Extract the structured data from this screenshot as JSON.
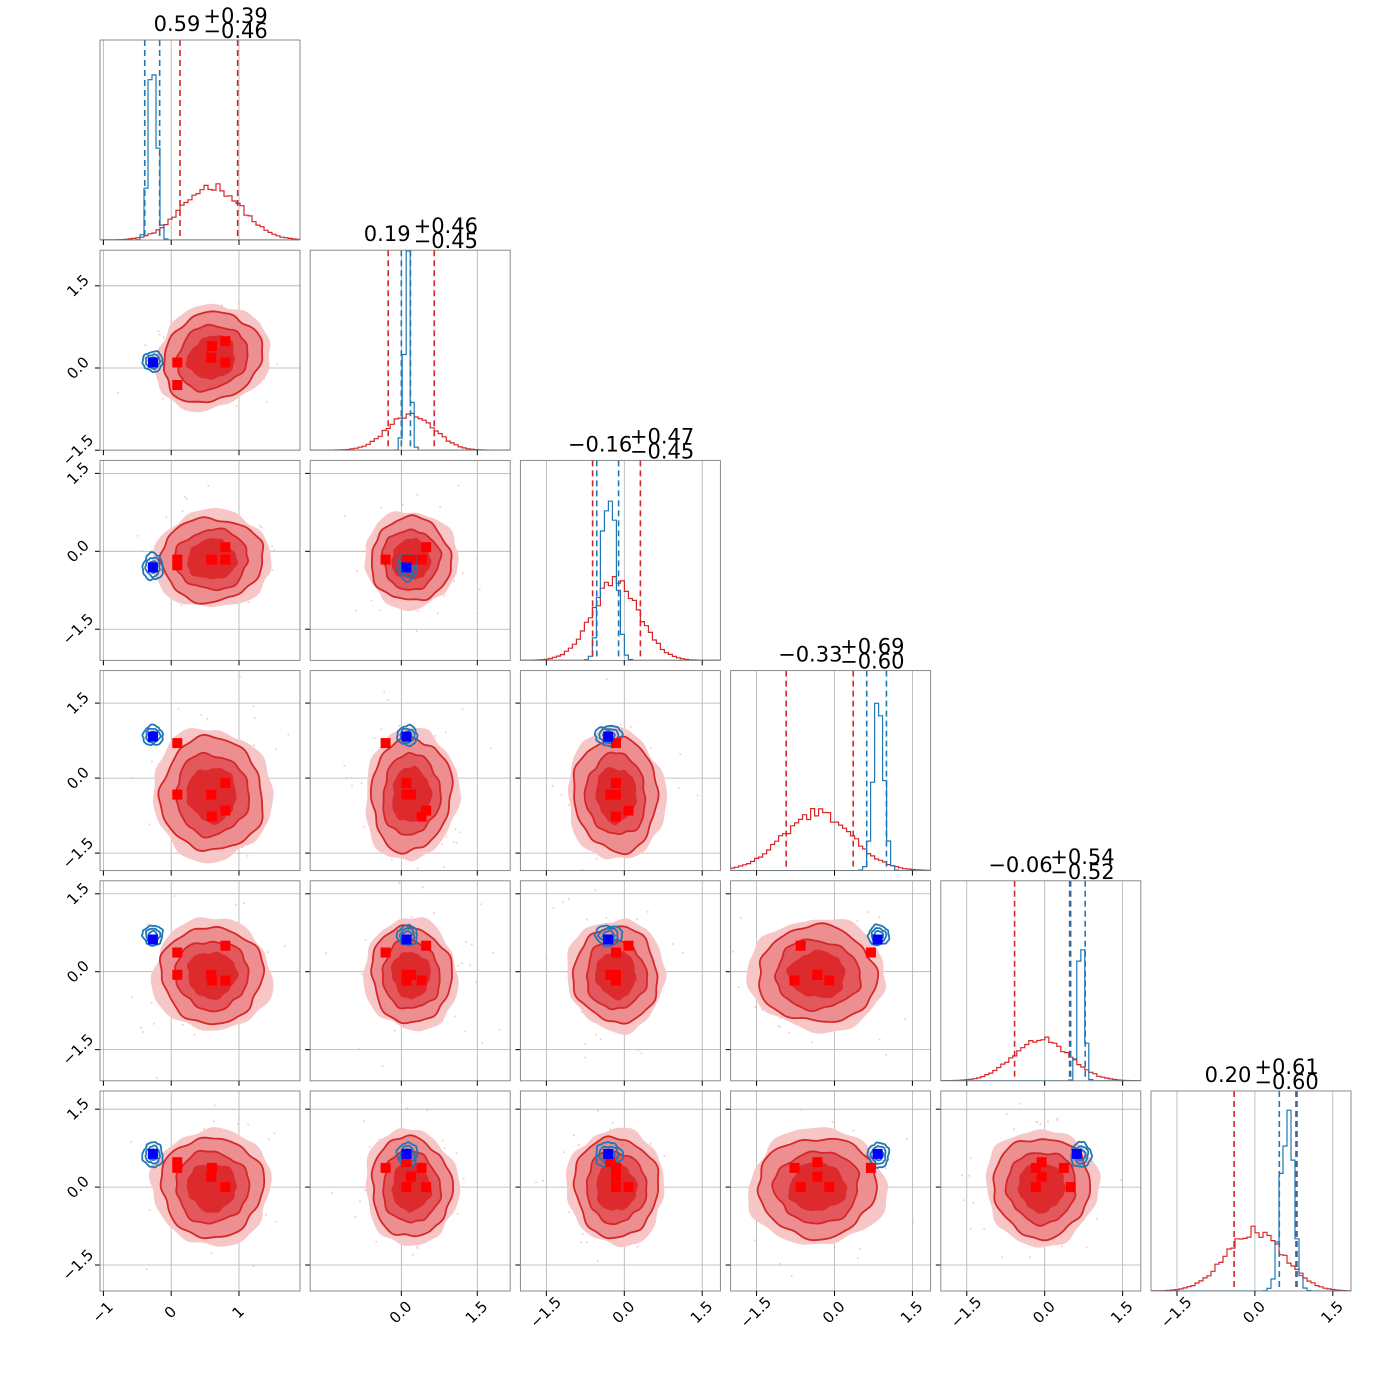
{
  "chart_data": {
    "type": "corner",
    "n_params": 6,
    "grid": true,
    "colors": {
      "red": "#d62728",
      "blue": "#1f77b4",
      "red_marker": "#ff0000",
      "blue_marker": "#0000ff"
    },
    "titles": [
      {
        "median": "0.59",
        "plus": "+0.39",
        "minus": "−0.46"
      },
      {
        "median": "0.19",
        "plus": "+0.46",
        "minus": "−0.45"
      },
      {
        "median": "−0.16",
        "plus": "+0.47",
        "minus": "−0.45"
      },
      {
        "median": "−0.33",
        "plus": "+0.69",
        "minus": "−0.60"
      },
      {
        "median": "−0.06",
        "plus": "+0.54",
        "minus": "−0.52"
      },
      {
        "median": "0.20",
        "plus": "+0.61",
        "minus": "−0.60"
      }
    ],
    "x_ranges": [
      [
        -1.05,
        1.9
      ],
      [
        -1.8,
        2.15
      ],
      [
        -2.0,
        1.85
      ],
      [
        -2.0,
        1.85
      ],
      [
        -2.0,
        1.85
      ],
      [
        -2.0,
        1.85
      ]
    ],
    "y_ranges": [
      null,
      [
        -1.5,
        2.15
      ],
      [
        -2.1,
        1.75
      ],
      [
        -1.85,
        2.15
      ],
      [
        -2.1,
        1.75
      ],
      [
        -2.0,
        1.85
      ]
    ],
    "x_ticks": [
      {
        "values": [
          -1,
          0,
          1
        ],
        "labels": [
          "−1",
          "0",
          "1"
        ]
      },
      {
        "values": [
          0,
          1.5
        ],
        "labels": [
          "0.0",
          "1.5"
        ]
      },
      {
        "values": [
          -1.5,
          0,
          1.5
        ],
        "labels": [
          "−1.5",
          "0.0",
          "1.5"
        ]
      },
      {
        "values": [
          -1.5,
          0,
          1.5
        ],
        "labels": [
          "−1.5",
          "0.0",
          "1.5"
        ]
      },
      {
        "values": [
          -1.5,
          0,
          1.5
        ],
        "labels": [
          "−1.5",
          "0.0",
          "1.5"
        ]
      },
      {
        "values": [
          -1.5,
          0,
          1.5
        ],
        "labels": [
          "−1.5",
          "0.0",
          "1.5"
        ]
      }
    ],
    "y_ticks": {
      "values": [
        -1.5,
        0,
        1.5
      ],
      "labels": [
        "−1.5",
        "0.0",
        "1.5"
      ]
    },
    "diagonal": [
      {
        "red": {
          "mean": 0.6,
          "sd": 0.43,
          "peak": 0.27
        },
        "blue": {
          "mean": -0.27,
          "sd": 0.06,
          "peak": 0.96
        },
        "red_lines": [
          0.13,
          0.98
        ],
        "blue_lines": [
          -0.39,
          -0.17
        ]
      },
      {
        "red": {
          "mean": 0.19,
          "sd": 0.45,
          "peak": 0.18
        },
        "blue": {
          "mean": 0.12,
          "sd": 0.06,
          "peak": 0.9
        },
        "red_lines": [
          -0.26,
          0.65
        ],
        "blue_lines": [
          0.0,
          0.18
        ]
      },
      {
        "red": {
          "mean": -0.16,
          "sd": 0.46,
          "peak": 0.39
        },
        "blue": {
          "mean": -0.3,
          "sd": 0.13,
          "peak": 0.93
        },
        "red_lines": [
          -0.61,
          0.31
        ],
        "blue_lines": [
          -0.53,
          -0.11
        ]
      },
      {
        "red": {
          "mean": -0.33,
          "sd": 0.65,
          "peak": 0.29
        },
        "blue": {
          "mean": 0.85,
          "sd": 0.1,
          "peak": 0.9
        },
        "red_lines": [
          -0.93,
          0.36
        ],
        "blue_lines": [
          0.62,
          1.0
        ]
      },
      {
        "red": {
          "mean": -0.06,
          "sd": 0.53,
          "peak": 0.21
        },
        "blue": {
          "mean": 0.7,
          "sd": 0.06,
          "peak": 0.9
        },
        "red_lines": [
          -0.58,
          0.48
        ],
        "blue_lines": [
          0.5,
          0.78
        ]
      },
      {
        "red": {
          "mean": 0.0,
          "sd": 0.55,
          "peak": 0.3
        },
        "blue": {
          "mean": 0.62,
          "sd": 0.12,
          "peak": 0.9
        },
        "red_lines": [
          -0.4,
          0.81
        ],
        "blue_lines": [
          0.47,
          0.79
        ]
      }
    ],
    "red_points": [
      [
        0.59,
        0.19,
        -0.16,
        -0.33,
        -0.06,
        0.2
      ],
      [
        0.09,
        -0.31,
        -0.16,
        0.7,
        0.37,
        0.37
      ],
      [
        0.8,
        0.49,
        0.08,
        -0.65,
        0.5,
        0.0
      ],
      [
        0.6,
        0.4,
        -0.16,
        -0.77,
        -0.17,
        0.37
      ],
      [
        0.09,
        0.1,
        -0.27,
        -0.33,
        -0.06,
        0.48
      ],
      [
        0.8,
        0.1,
        -0.16,
        -0.1,
        -0.17,
        0.0
      ]
    ],
    "blue_point": [
      -0.27,
      0.1,
      -0.31,
      0.83,
      0.62,
      0.64
    ]
  }
}
